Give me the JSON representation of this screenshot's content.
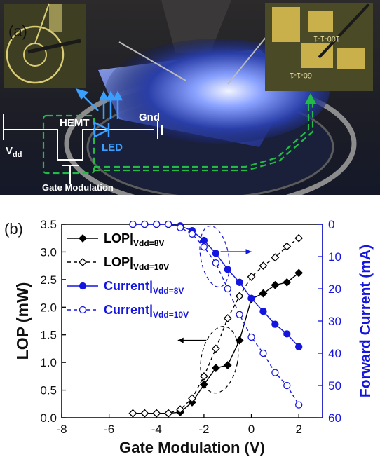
{
  "panel_a": {
    "label": "(a)",
    "circuit": {
      "hemt": "HEMT",
      "led": "LED",
      "gnd": "Gnd",
      "vdd": "V",
      "vdd_sub": "dd",
      "gate": "Gate Modulation"
    },
    "inset_right_labels": [
      "100-1-1",
      "60-1-1"
    ]
  },
  "panel_b": {
    "label": "(b)"
  },
  "colors": {
    "lop": "#000000",
    "current": "#1515e0",
    "current_axis": "#1515e0",
    "circuit": "#ffffff",
    "arrows_blue": "#3aa0ff",
    "arrows_green": "#22bb44"
  },
  "chart_data": {
    "type": "line",
    "xlabel": "Gate Modulation (V)",
    "ylabel": "LOP (mW)",
    "y2label": "Forward Current (mA)",
    "xlim": [
      -8,
      3
    ],
    "ylim": [
      0,
      3.5
    ],
    "y2lim": [
      0,
      60
    ],
    "y2_inverted": true,
    "xticks": [
      "-8",
      "-6",
      "-4",
      "-2",
      "0",
      "2"
    ],
    "yticks": [
      "0.0",
      "0.5",
      "1.0",
      "1.5",
      "2.0",
      "2.5",
      "3.0",
      "3.5"
    ],
    "y2ticks": [
      "0",
      "10",
      "20",
      "30",
      "40",
      "50",
      "60"
    ],
    "legend_position": "top-left",
    "series": [
      {
        "legend_main": "LOP|",
        "legend_sub": "Vdd=8V",
        "axis": "left",
        "marker": "diamond-filled",
        "line": "solid",
        "color": "#000000",
        "x": [
          -5.0,
          -4.5,
          -4.0,
          -3.5,
          -3.0,
          -2.5,
          -2.0,
          -1.5,
          -1.0,
          -0.5,
          0.0,
          0.5,
          1.0,
          1.5,
          2.0
        ],
        "values": [
          0.08,
          0.08,
          0.08,
          0.08,
          0.1,
          0.28,
          0.6,
          0.9,
          0.95,
          1.4,
          2.15,
          2.25,
          2.4,
          2.45,
          2.62
        ]
      },
      {
        "legend_main": "LOP|",
        "legend_sub": "Vdd=10V",
        "axis": "left",
        "marker": "diamond-open",
        "line": "dashed",
        "color": "#000000",
        "x": [
          -5.0,
          -4.5,
          -4.0,
          -3.5,
          -3.0,
          -2.5,
          -2.0,
          -1.5,
          -1.0,
          -0.5,
          0.0,
          0.5,
          1.0,
          1.5,
          2.0
        ],
        "values": [
          0.08,
          0.08,
          0.08,
          0.08,
          0.15,
          0.35,
          0.75,
          1.25,
          1.8,
          2.2,
          2.55,
          2.75,
          2.9,
          3.1,
          3.25
        ]
      },
      {
        "legend_main": "Current|",
        "legend_sub": "Vdd=8V",
        "axis": "right",
        "marker": "circle-filled",
        "line": "solid",
        "color": "#1515e0",
        "x": [
          -5.0,
          -4.5,
          -4.0,
          -3.5,
          -3.0,
          -2.5,
          -2.0,
          -1.5,
          -1.0,
          -0.5,
          0.0,
          0.5,
          1.0,
          1.5,
          2.0
        ],
        "values": [
          0,
          0,
          0,
          0,
          0.5,
          2,
          5,
          9,
          14,
          18,
          23,
          27,
          31,
          34,
          38
        ]
      },
      {
        "legend_main": "Current|",
        "legend_sub": "Vdd=10V",
        "axis": "right",
        "marker": "circle-open",
        "line": "dashed",
        "color": "#1515e0",
        "x": [
          -5.0,
          -4.5,
          -4.0,
          -3.5,
          -3.0,
          -2.5,
          -2.0,
          -1.5,
          -1.0,
          -0.5,
          0.0,
          0.5,
          1.0,
          1.5,
          2.0
        ],
        "values": [
          0,
          0,
          0,
          0,
          1,
          3,
          7,
          12,
          20,
          28,
          35,
          40,
          46,
          50,
          56
        ]
      }
    ]
  }
}
